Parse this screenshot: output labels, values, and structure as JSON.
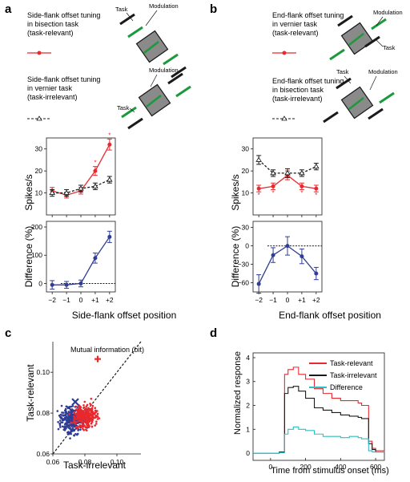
{
  "panels": {
    "a": {
      "label": "a",
      "legend": [
        {
          "text": "Side-flank offset tuning in bisection task (task-relevant)",
          "lines": [
            "Side-flank offset tuning",
            "in bisection task",
            "(task-relevant)"
          ]
        },
        {
          "text": "Side-flank offset tuning in vernier task (task-irrelevant)",
          "lines": [
            "Side-flank offset tuning",
            "in vernier task",
            "(task-irrelevant)"
          ]
        }
      ],
      "schematic_labels": {
        "task": "Task",
        "modulation": "Modulation"
      }
    },
    "b": {
      "label": "b",
      "legend": [
        {
          "text": "End-flank offset tuning in vernier task (task-relevant)",
          "lines": [
            "End-flank offset tuning",
            "in vernier task",
            "(task-relevant)"
          ]
        },
        {
          "text": "End-flank offset tuning in bisection task (task-irrelevant)",
          "lines": [
            "End-flank offset tuning",
            "in bisection task",
            "(task-irrelevant)"
          ]
        }
      ],
      "schematic_labels": {
        "task": "Task",
        "modulation": "Modulation"
      }
    },
    "c": {
      "label": "c"
    },
    "d": {
      "label": "d"
    }
  },
  "colors": {
    "red": "#e8292e",
    "black": "#1a1a1a",
    "blue": "#2f3d94",
    "cyan": "#2bbfc4",
    "green": "#1a9a3c",
    "gray": "#8a8a8a"
  },
  "chart_data": [
    {
      "id": "a-top",
      "type": "line",
      "x": [
        -2,
        -1,
        0,
        1,
        2
      ],
      "ylabel": "Spikes/s",
      "ylim": [
        0,
        35
      ],
      "yticks": [
        10,
        20,
        30
      ],
      "series": [
        {
          "values": [
            11,
            9,
            11,
            20,
            32
          ],
          "errors": [
            1.5,
            1.3,
            1.5,
            2.0,
            2.5
          ],
          "color": "#e8292e",
          "style": "solid",
          "marker": "circle",
          "significant": [
            false,
            false,
            false,
            true,
            true
          ]
        },
        {
          "values": [
            10,
            10,
            12,
            13,
            16
          ],
          "errors": [
            1.5,
            1.5,
            1.5,
            1.5,
            1.5
          ],
          "color": "#1a1a1a",
          "style": "dashed",
          "marker": "triangle"
        }
      ]
    },
    {
      "id": "a-bottom",
      "type": "line",
      "x": [
        -2,
        -1,
        0,
        1,
        2
      ],
      "xticklabels": [
        "−2",
        "−1",
        "0",
        "+1",
        "+2"
      ],
      "xlabel": "Side-flank offset position",
      "ylabel": "Difference (%)",
      "ylim": [
        -30,
        220
      ],
      "yticks": [
        0,
        100,
        200
      ],
      "series": [
        {
          "values": [
            -5,
            -5,
            0,
            90,
            165
          ],
          "errors": [
            15,
            12,
            12,
            18,
            20
          ],
          "color": "#2f3d94",
          "style": "solid",
          "marker": "circle"
        }
      ],
      "reference_line": 0
    },
    {
      "id": "b-top",
      "type": "line",
      "x": [
        -2,
        -1,
        0,
        1,
        2
      ],
      "ylabel": "Spikes/s",
      "ylim": [
        0,
        35
      ],
      "yticks": [
        10,
        20,
        30
      ],
      "series": [
        {
          "values": [
            12,
            13,
            18,
            13,
            12
          ],
          "errors": [
            1.5,
            1.5,
            2,
            1.5,
            1.5
          ],
          "color": "#e8292e",
          "style": "solid",
          "marker": "circle",
          "significant": [
            true,
            true,
            false,
            true,
            true
          ]
        },
        {
          "values": [
            25,
            19,
            19,
            19,
            22
          ],
          "errors": [
            2,
            1.5,
            2,
            1.5,
            1.5
          ],
          "color": "#1a1a1a",
          "style": "dashed",
          "marker": "triangle"
        }
      ]
    },
    {
      "id": "b-bottom",
      "type": "line",
      "x": [
        -2,
        -1,
        0,
        1,
        2
      ],
      "xticklabels": [
        "−2",
        "−1",
        "0",
        "+1",
        "+2"
      ],
      "xlabel": "End-flank offset position",
      "ylabel": "Difference (%)",
      "ylim": [
        -75,
        40
      ],
      "yticks": [
        -60,
        -30,
        0,
        30
      ],
      "series": [
        {
          "values": [
            -62,
            -15,
            0,
            -17,
            -45
          ],
          "errors": [
            15,
            12,
            15,
            12,
            10
          ],
          "color": "#2f3d94",
          "style": "solid",
          "marker": "circle"
        }
      ],
      "reference_line": 0
    },
    {
      "id": "c",
      "type": "scatter",
      "title": "Mutual information (bit)",
      "xlabel": "Task-irrelevant",
      "ylabel": "Task-relevant",
      "xlim": [
        0.06,
        0.115
      ],
      "ylim": [
        0.06,
        0.115
      ],
      "xticks": [
        0.06,
        0.08,
        0.1
      ],
      "xticklabels": [
        "0.06",
        "0.08",
        "0.10"
      ],
      "yticks": [
        0.06,
        0.08,
        0.1
      ],
      "yticklabels": [
        "0.06",
        "0.08",
        "0.10"
      ],
      "identity_line": true,
      "clusters": [
        {
          "color": "#2f3d94",
          "center": [
            0.072,
            0.0765
          ],
          "spread": [
            0.0035,
            0.003
          ],
          "count": 300
        },
        {
          "color": "#e8292e",
          "center": [
            0.08,
            0.0785
          ],
          "spread": [
            0.0035,
            0.003
          ],
          "count": 300
        }
      ],
      "means": [
        {
          "color": "#2f3d94",
          "marker": "x",
          "x": 0.074,
          "y": 0.0855
        },
        {
          "color": "#e8292e",
          "marker": "+",
          "x": 0.088,
          "y": 0.1065
        }
      ]
    },
    {
      "id": "d",
      "type": "line",
      "xlabel": "Time from stimulus onset (ms)",
      "ylabel": "Normalized response",
      "xlim": [
        -100,
        650
      ],
      "ylim": [
        -0.3,
        4.2
      ],
      "xticks": [
        0,
        200,
        400,
        600
      ],
      "xticklabels": [
        "0",
        "200",
        "400",
        "600"
      ],
      "yticks": [
        0,
        1,
        2,
        3,
        4
      ],
      "yticklabels": [
        "0",
        "1",
        "2",
        "3",
        "4"
      ],
      "series": [
        {
          "name": "Task-relevant",
          "color": "#e8292e",
          "x": [
            -100,
            50,
            80,
            100,
            130,
            160,
            200,
            250,
            300,
            350,
            400,
            450,
            500,
            520,
            560,
            580,
            600,
            650
          ],
          "values": [
            0.0,
            0.05,
            3.3,
            3.5,
            3.6,
            3.3,
            3.1,
            2.7,
            2.5,
            2.3,
            2.2,
            2.2,
            2.1,
            2.0,
            0.5,
            0.2,
            0.1,
            0.05
          ]
        },
        {
          "name": "Task-irrelevant",
          "color": "#1a1a1a",
          "x": [
            -100,
            50,
            80,
            100,
            130,
            160,
            200,
            250,
            300,
            350,
            400,
            450,
            500,
            520,
            560,
            580,
            600,
            650
          ],
          "values": [
            0.0,
            0.05,
            2.5,
            2.75,
            2.8,
            2.6,
            2.3,
            1.9,
            1.8,
            1.7,
            1.6,
            1.55,
            1.5,
            1.45,
            0.4,
            0.15,
            0.05,
            0.0
          ]
        },
        {
          "name": "Difference",
          "color": "#2bbfc4",
          "x": [
            -100,
            50,
            80,
            100,
            130,
            160,
            200,
            250,
            300,
            350,
            400,
            450,
            500,
            520,
            560,
            580,
            600,
            650
          ],
          "values": [
            0.0,
            0.02,
            0.8,
            1.0,
            1.1,
            1.0,
            0.95,
            0.8,
            0.7,
            0.7,
            0.65,
            0.7,
            0.65,
            0.6,
            0.1,
            0.05,
            0.05,
            0.02
          ]
        }
      ]
    }
  ]
}
